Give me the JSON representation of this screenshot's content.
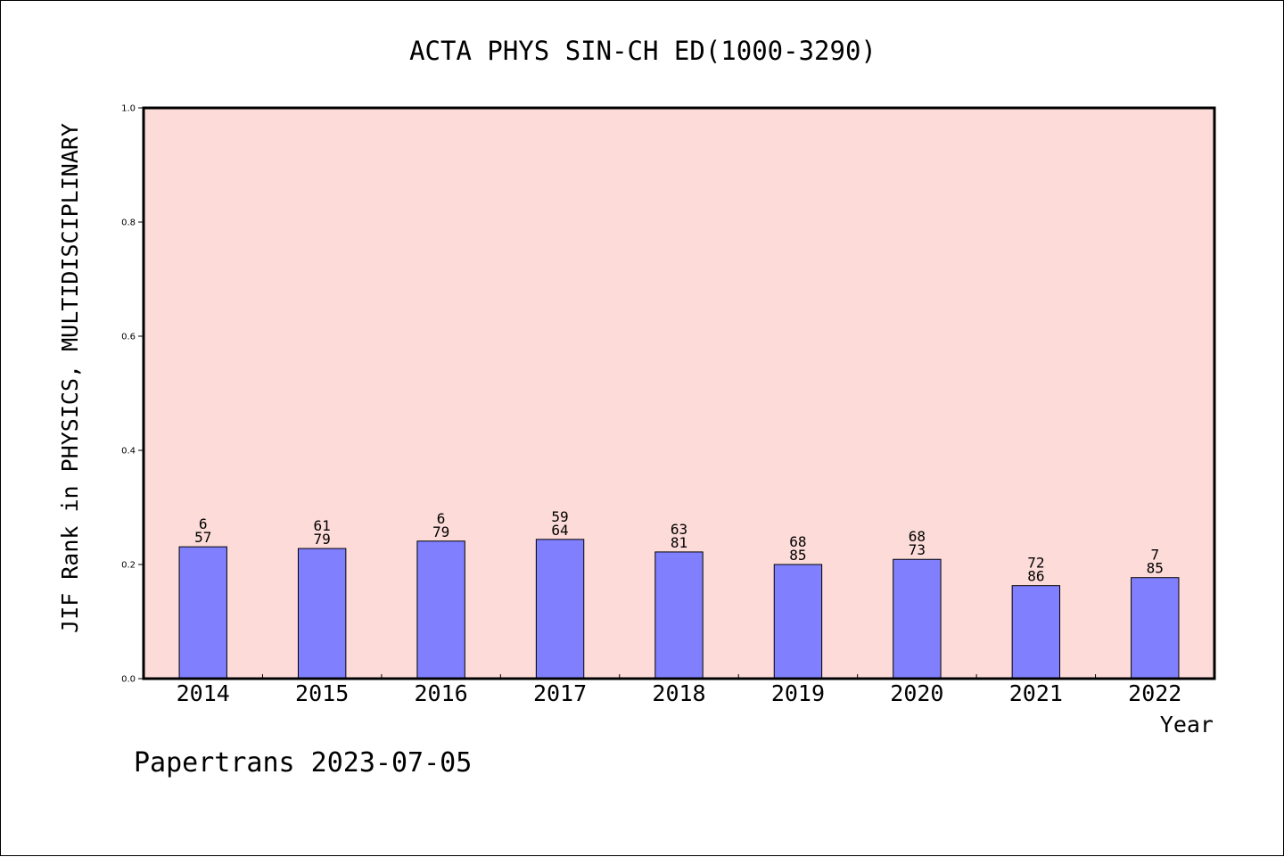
{
  "chart_data": {
    "type": "bar",
    "title": "ACTA PHYS SIN-CH ED(1000-3290)",
    "xlabel": "Year",
    "ylabel": "JIF Rank in PHYSICS, MULTIDISCIPLINARY",
    "ylim": [
      0,
      1.0
    ],
    "yticks": [
      "0.0",
      "0.2",
      "0.4",
      "0.6",
      "0.8",
      "1.0"
    ],
    "categories": [
      "2014",
      "2015",
      "2016",
      "2017",
      "2018",
      "2019",
      "2020",
      "2021",
      "2022"
    ],
    "values": [
      0.231,
      0.228,
      0.241,
      0.244,
      0.222,
      0.2,
      0.209,
      0.163,
      0.177
    ],
    "bar_labels": [
      [
        "6",
        "57"
      ],
      [
        "61",
        "79"
      ],
      [
        "6",
        "79"
      ],
      [
        "59",
        "64"
      ],
      [
        "63",
        "81"
      ],
      [
        "68",
        "85"
      ],
      [
        "68",
        "73"
      ],
      [
        "72",
        "86"
      ],
      [
        "7",
        "85"
      ]
    ],
    "grid": false,
    "plot_background": "#fddbd8",
    "bar_color": "#8080ff"
  },
  "footer": "Papertrans 2023-07-05"
}
